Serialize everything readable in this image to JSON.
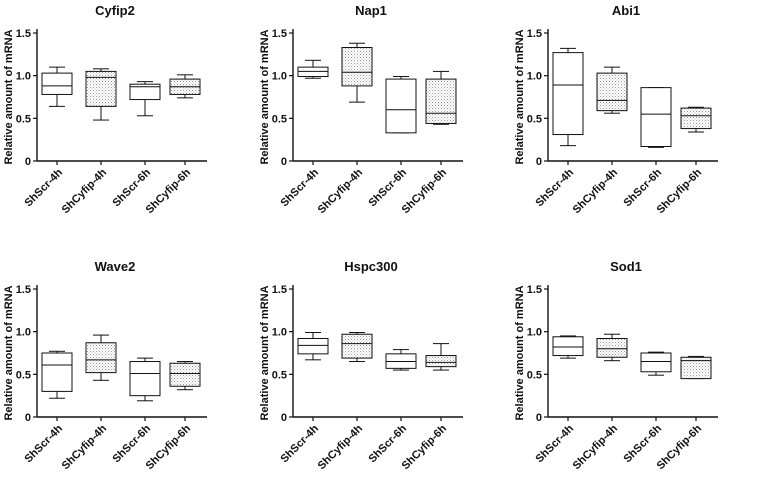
{
  "figure": {
    "ylabel": "Relative amount of mRNA",
    "categories": [
      "ShScr-4h",
      "ShCyfip-4h",
      "ShScr-6h",
      "ShCyfip-6h"
    ],
    "y_ticks": [
      "0",
      "0.5",
      "1.0",
      "1.5"
    ],
    "colors": {
      "axis": "#111111",
      "box_fill": "#ffffff",
      "stipple": "#9a9a9a"
    }
  },
  "chart_data": [
    {
      "type": "box",
      "title": "Cyfip2",
      "ylim": [
        0,
        1.5
      ],
      "xlabel": "",
      "ylabel": "Relative amount of mRNA",
      "categories": [
        "ShScr-4h",
        "ShCyfip-4h",
        "ShScr-6h",
        "ShCyfip-6h"
      ],
      "boxes": [
        {
          "min": 0.64,
          "q1": 0.78,
          "median": 0.88,
          "q3": 1.03,
          "max": 1.1,
          "fill": "plain"
        },
        {
          "min": 0.48,
          "q1": 0.64,
          "median": 0.98,
          "q3": 1.05,
          "max": 1.08,
          "fill": "stipple"
        },
        {
          "min": 0.53,
          "q1": 0.72,
          "median": 0.87,
          "q3": 0.9,
          "max": 0.93,
          "fill": "plain"
        },
        {
          "min": 0.74,
          "q1": 0.78,
          "median": 0.87,
          "q3": 0.96,
          "max": 1.01,
          "fill": "stipple"
        }
      ]
    },
    {
      "type": "box",
      "title": "Nap1",
      "ylim": [
        0,
        1.5
      ],
      "xlabel": "",
      "ylabel": "Relative amount of mRNA",
      "categories": [
        "ShScr-4h",
        "ShCyfip-4h",
        "ShScr-6h",
        "ShCyfip-6h"
      ],
      "boxes": [
        {
          "min": 0.97,
          "q1": 0.99,
          "median": 1.05,
          "q3": 1.1,
          "max": 1.18,
          "fill": "plain"
        },
        {
          "min": 0.69,
          "q1": 0.88,
          "median": 1.04,
          "q3": 1.33,
          "max": 1.38,
          "fill": "stipple"
        },
        {
          "min": 0.33,
          "q1": 0.33,
          "median": 0.6,
          "q3": 0.96,
          "max": 0.99,
          "fill": "plain"
        },
        {
          "min": 0.43,
          "q1": 0.44,
          "median": 0.56,
          "q3": 0.96,
          "max": 1.05,
          "fill": "stipple"
        }
      ]
    },
    {
      "type": "box",
      "title": "Abi1",
      "ylim": [
        0,
        1.5
      ],
      "xlabel": "",
      "ylabel": "Relative amount of mRNA",
      "categories": [
        "ShScr-4h",
        "ShCyfip-4h",
        "ShScr-6h",
        "ShCyfip-6h"
      ],
      "boxes": [
        {
          "min": 0.18,
          "q1": 0.31,
          "median": 0.89,
          "q3": 1.27,
          "max": 1.32,
          "fill": "plain"
        },
        {
          "min": 0.56,
          "q1": 0.59,
          "median": 0.71,
          "q3": 1.03,
          "max": 1.1,
          "fill": "stipple"
        },
        {
          "min": 0.16,
          "q1": 0.17,
          "median": 0.55,
          "q3": 0.86,
          "max": 0.86,
          "fill": "plain"
        },
        {
          "min": 0.34,
          "q1": 0.38,
          "median": 0.53,
          "q3": 0.62,
          "max": 0.63,
          "fill": "stipple"
        }
      ]
    },
    {
      "type": "box",
      "title": "Wave2",
      "ylim": [
        0,
        1.5
      ],
      "xlabel": "",
      "ylabel": "Relative amount of mRNA",
      "categories": [
        "ShScr-4h",
        "ShCyfip-4h",
        "ShScr-6h",
        "ShCyfip-6h"
      ],
      "boxes": [
        {
          "min": 0.22,
          "q1": 0.3,
          "median": 0.61,
          "q3": 0.75,
          "max": 0.77,
          "fill": "plain"
        },
        {
          "min": 0.43,
          "q1": 0.52,
          "median": 0.67,
          "q3": 0.87,
          "max": 0.96,
          "fill": "stipple"
        },
        {
          "min": 0.19,
          "q1": 0.25,
          "median": 0.51,
          "q3": 0.65,
          "max": 0.69,
          "fill": "plain"
        },
        {
          "min": 0.32,
          "q1": 0.36,
          "median": 0.51,
          "q3": 0.63,
          "max": 0.65,
          "fill": "stipple"
        }
      ]
    },
    {
      "type": "box",
      "title": "Hspc300",
      "ylim": [
        0,
        1.5
      ],
      "xlabel": "",
      "ylabel": "Relative amount of mRNA",
      "categories": [
        "ShScr-4h",
        "ShCyfip-4h",
        "ShScr-6h",
        "ShCyfip-6h"
      ],
      "boxes": [
        {
          "min": 0.67,
          "q1": 0.74,
          "median": 0.84,
          "q3": 0.92,
          "max": 0.99,
          "fill": "plain"
        },
        {
          "min": 0.65,
          "q1": 0.69,
          "median": 0.86,
          "q3": 0.97,
          "max": 0.99,
          "fill": "stipple"
        },
        {
          "min": 0.55,
          "q1": 0.57,
          "median": 0.65,
          "q3": 0.74,
          "max": 0.79,
          "fill": "plain"
        },
        {
          "min": 0.55,
          "q1": 0.59,
          "median": 0.64,
          "q3": 0.72,
          "max": 0.86,
          "fill": "stipple"
        }
      ]
    },
    {
      "type": "box",
      "title": "Sod1",
      "ylim": [
        0,
        1.5
      ],
      "xlabel": "",
      "ylabel": "Relative amount of mRNA",
      "categories": [
        "ShScr-4h",
        "ShCyfip-4h",
        "ShScr-6h",
        "ShCyfip-6h"
      ],
      "boxes": [
        {
          "min": 0.69,
          "q1": 0.72,
          "median": 0.82,
          "q3": 0.94,
          "max": 0.95,
          "fill": "plain"
        },
        {
          "min": 0.66,
          "q1": 0.7,
          "median": 0.8,
          "q3": 0.92,
          "max": 0.97,
          "fill": "stipple"
        },
        {
          "min": 0.49,
          "q1": 0.53,
          "median": 0.65,
          "q3": 0.75,
          "max": 0.76,
          "fill": "plain"
        },
        {
          "min": 0.45,
          "q1": 0.45,
          "median": 0.66,
          "q3": 0.7,
          "max": 0.71,
          "fill": "stipple"
        }
      ]
    }
  ]
}
